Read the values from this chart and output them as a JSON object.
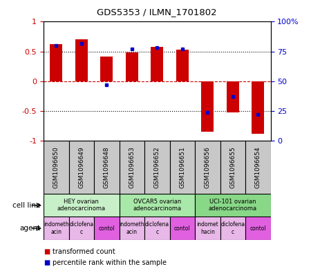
{
  "title": "GDS5353 / ILMN_1701802",
  "samples": [
    "GSM1096650",
    "GSM1096649",
    "GSM1096648",
    "GSM1096653",
    "GSM1096652",
    "GSM1096651",
    "GSM1096656",
    "GSM1096655",
    "GSM1096654"
  ],
  "transformed_counts": [
    0.62,
    0.7,
    0.42,
    0.48,
    0.58,
    0.53,
    -0.85,
    -0.52,
    -0.88
  ],
  "percentile_ranks": [
    80,
    82,
    47,
    77,
    78,
    77,
    24,
    37,
    22
  ],
  "cell_lines": [
    {
      "label": "HEY ovarian\nadenocarcinoma",
      "start": 0,
      "end": 3,
      "color": "#c8f0c8"
    },
    {
      "label": "OVCAR5 ovarian\nadenocarcinoma",
      "start": 3,
      "end": 6,
      "color": "#a8e8a8"
    },
    {
      "label": "UCI-101 ovarian\nadenocarcinoma",
      "start": 6,
      "end": 9,
      "color": "#88d888"
    }
  ],
  "agents": [
    {
      "label": "indometh\nacin",
      "start": 0,
      "end": 1,
      "color": "#e8b8e8"
    },
    {
      "label": "diclofena\nc",
      "start": 1,
      "end": 2,
      "color": "#e8b8e8"
    },
    {
      "label": "contol",
      "start": 2,
      "end": 3,
      "color": "#e060e0"
    },
    {
      "label": "indometh\nacin",
      "start": 3,
      "end": 4,
      "color": "#e8b8e8"
    },
    {
      "label": "diclofena\nc",
      "start": 4,
      "end": 5,
      "color": "#e8b8e8"
    },
    {
      "label": "contol",
      "start": 5,
      "end": 6,
      "color": "#e060e0"
    },
    {
      "label": "indomet\nhacin",
      "start": 6,
      "end": 7,
      "color": "#e8b8e8"
    },
    {
      "label": "diclofena\nc",
      "start": 7,
      "end": 8,
      "color": "#e8b8e8"
    },
    {
      "label": "contol",
      "start": 8,
      "end": 9,
      "color": "#e060e0"
    }
  ],
  "bar_color": "#cc0000",
  "dot_color": "#0000cc",
  "left_axis_color": "#cc0000",
  "right_axis_color": "#0000cc",
  "ylim": [
    -1,
    1
  ],
  "right_ylim": [
    0,
    100
  ],
  "left_yticks": [
    -1,
    -0.5,
    0,
    0.5,
    1
  ],
  "left_yticklabels": [
    "-1",
    "-0.5",
    "0",
    "0.5",
    "1"
  ],
  "right_yticks": [
    0,
    25,
    50,
    75,
    100
  ],
  "right_yticklabels": [
    "0",
    "25",
    "50",
    "75",
    "100%"
  ],
  "bar_width": 0.5,
  "sample_box_color": "#c8c8c8",
  "bg_color": "#ffffff"
}
